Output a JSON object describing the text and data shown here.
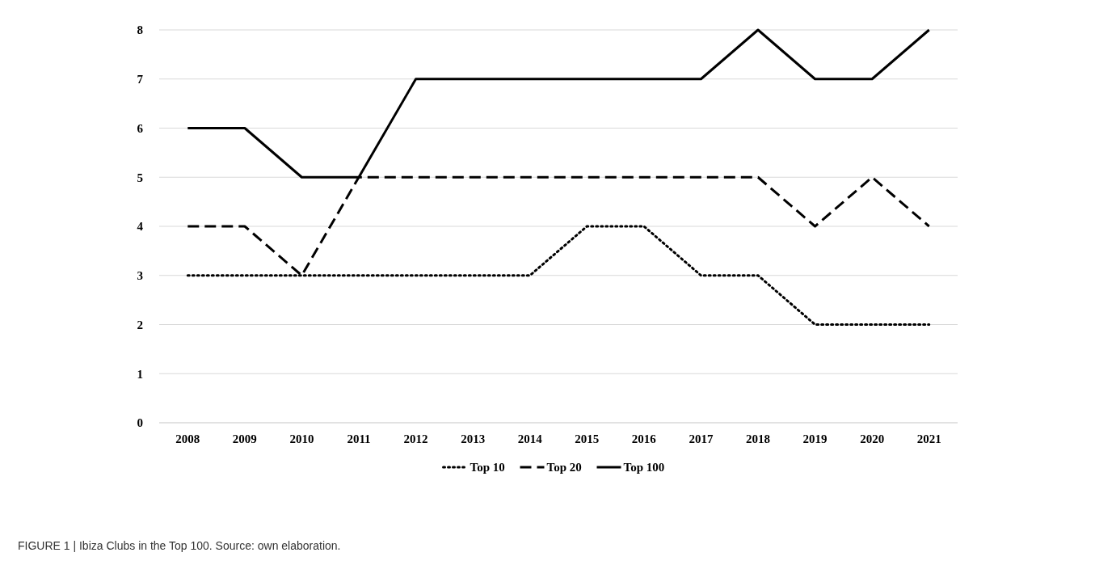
{
  "chart_data": {
    "type": "line",
    "categories": [
      "2008",
      "2009",
      "2010",
      "2011",
      "2012",
      "2013",
      "2014",
      "2015",
      "2016",
      "2017",
      "2018",
      "2019",
      "2020",
      "2021"
    ],
    "series": [
      {
        "name": "Top 10",
        "color": "#000000",
        "line_style": "dotted",
        "values": [
          3,
          3,
          3,
          3,
          3,
          3,
          3,
          4,
          4,
          3,
          3,
          2,
          2,
          2
        ]
      },
      {
        "name": "Top 20",
        "color": "#000000",
        "line_style": "dashed",
        "values": [
          4,
          4,
          3,
          5,
          5,
          5,
          5,
          5,
          5,
          5,
          5,
          4,
          5,
          4
        ]
      },
      {
        "name": "Top 100",
        "color": "#000000",
        "line_style": "solid",
        "values": [
          6,
          6,
          5,
          5,
          7,
          7,
          7,
          7,
          7,
          7,
          8,
          7,
          7,
          8
        ]
      }
    ],
    "ylim": [
      0,
      8
    ],
    "yticks": [
      0,
      1,
      2,
      3,
      4,
      5,
      6,
      7,
      8
    ],
    "grid": "y",
    "legend": "bottom",
    "marker": "none",
    "annotations": [
      "FIGURE 1 | Ibiza Clubs in the Top 100. Source: own elaboration."
    ]
  }
}
